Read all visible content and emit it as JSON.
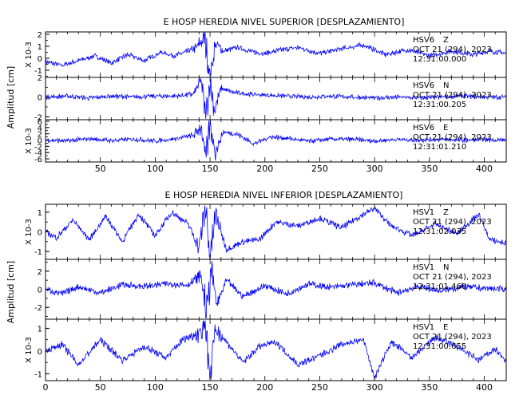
{
  "colors": {
    "trace": "#0000ff",
    "axis": "#000000",
    "background": "#ffffff"
  },
  "chart_data": [
    {
      "type": "line",
      "title": "E HOSP HEREDIA NIVEL SUPERIOR [DESPLAZAMIENTO]",
      "ylabel": "Amplitud [cm]",
      "xlim": [
        0,
        420
      ],
      "xticks": [
        50,
        100,
        150,
        200,
        250,
        300,
        350,
        400
      ],
      "grid": false,
      "panels": [
        {
          "scale_label": "X 10-3",
          "ylim": [
            -1.6,
            2.2
          ],
          "yticks": [
            -1,
            0,
            1,
            2
          ],
          "station": "HSV6",
          "component": "Z",
          "date": "OCT 21 (294), 2023",
          "time": "12:31:00.000",
          "series": [
            {
              "x": [
                0,
                15,
                30,
                45,
                60,
                75,
                90,
                105,
                118,
                130,
                138,
                145,
                150,
                155,
                162,
                175,
                190,
                200,
                215,
                230,
                250,
                270,
                290,
                310,
                330,
                350,
                370,
                390,
                405,
                420
              ],
              "y": [
                -0.3,
                -0.6,
                -0.2,
                0.2,
                -0.4,
                0.3,
                -0.2,
                0.5,
                0.2,
                0.6,
                0.9,
                1.8,
                -1.5,
                1.2,
                0.6,
                0.9,
                0.5,
                0.4,
                0.7,
                0.9,
                0.4,
                0.8,
                1.1,
                0.3,
                0.7,
                0.2,
                0.6,
                0.3,
                0.6,
                0.4
              ]
            }
          ]
        },
        {
          "scale_label": "",
          "ylim": [
            -2.3,
            2.0
          ],
          "yticks": [
            -2,
            0,
            2
          ],
          "station": "HSV6",
          "component": "N",
          "date": "OCT 21 (294), 2023",
          "time": "12:31:00.205",
          "series": [
            {
              "x": [
                0,
                20,
                40,
                60,
                80,
                100,
                120,
                135,
                142,
                146,
                150,
                154,
                160,
                170,
                185,
                200,
                220,
                240,
                260,
                280,
                300,
                320,
                340,
                360,
                380,
                400,
                420
              ],
              "y": [
                0,
                0.1,
                -0.1,
                0.1,
                0,
                0.1,
                0.1,
                0.3,
                1.8,
                -2.2,
                1.7,
                -1.4,
                0.9,
                0.5,
                0.3,
                0.2,
                0.1,
                0,
                0.1,
                0,
                -0.1,
                0,
                -0.1,
                0,
                0.1,
                0,
                0
              ]
            }
          ]
        },
        {
          "scale_label": "X 10-3",
          "ylim": [
            -7,
            6.5
          ],
          "yticks": [
            -6,
            -4,
            -2,
            0,
            2,
            4,
            6
          ],
          "station": "HSV6",
          "component": "E",
          "date": "OCT 21 (294), 2023",
          "time": "12:31:01.210",
          "series": [
            {
              "x": [
                0,
                20,
                40,
                60,
                80,
                100,
                120,
                135,
                142,
                146,
                150,
                155,
                162,
                175,
                190,
                205,
                220,
                240,
                260,
                280,
                300,
                320,
                340,
                360,
                380,
                400,
                420
              ],
              "y": [
                0,
                -0.3,
                0.4,
                -0.2,
                0.3,
                -0.3,
                0.5,
                1.5,
                4.5,
                -6.5,
                5.2,
                -3.8,
                2.6,
                1.8,
                -1.2,
                1.0,
                0.6,
                -0.4,
                0.3,
                0.2,
                -0.3,
                0.2,
                0,
                0.2,
                -0.1,
                0.1,
                0
              ]
            }
          ]
        }
      ]
    },
    {
      "type": "line",
      "title": "E HOSP HEREDIA NIVEL INFERIOR [DESPLAZAMIENTO]",
      "ylabel": "Amplitud [cm]",
      "xlim": [
        0,
        420
      ],
      "xticks": [
        0,
        50,
        100,
        150,
        200,
        250,
        300,
        350,
        400
      ],
      "grid": false,
      "panels": [
        {
          "scale_label": "X 10-3",
          "ylim": [
            -1.4,
            1.4
          ],
          "yticks": [
            -1,
            0,
            1
          ],
          "station": "HSV1",
          "component": "Z",
          "date": "OCT 21 (294), 2023",
          "time": "12:31:02.035",
          "series": [
            {
              "x": [
                0,
                10,
                25,
                40,
                55,
                70,
                85,
                100,
                115,
                130,
                140,
                146,
                150,
                155,
                165,
                180,
                195,
                210,
                230,
                250,
                270,
                290,
                300,
                315,
                335,
                355,
                375,
                395,
                405,
                420
              ],
              "y": [
                0,
                -0.3,
                0.6,
                -0.4,
                0.8,
                -0.5,
                0.9,
                -0.2,
                1.0,
                0.4,
                -0.8,
                1.3,
                -1.3,
                0.9,
                -0.9,
                -0.5,
                -0.4,
                0.5,
                0.3,
                0.7,
                0.2,
                0.9,
                1.2,
                0.3,
                -0.2,
                0.4,
                -0.1,
                0.9,
                -0.4,
                -0.6
              ]
            }
          ]
        },
        {
          "scale_label": "",
          "ylim": [
            -3.3,
            3.3
          ],
          "yticks": [
            -2,
            0,
            2
          ],
          "station": "HSV1",
          "component": "N",
          "date": "OCT 21 (294), 2023",
          "time": "12:31:01.460",
          "series": [
            {
              "x": [
                0,
                15,
                30,
                50,
                70,
                90,
                110,
                130,
                142,
                147,
                151,
                156,
                165,
                180,
                200,
                220,
                240,
                260,
                280,
                300,
                320,
                340,
                360,
                380,
                400,
                420
              ],
              "y": [
                0,
                -0.5,
                0.3,
                -0.4,
                0.5,
                0.3,
                0.6,
                0.5,
                1.5,
                -3.0,
                2.5,
                -1.8,
                1.0,
                -0.8,
                0.4,
                -0.5,
                0.6,
                0.2,
                0.5,
                0.7,
                -0.4,
                0.3,
                -0.2,
                0.3,
                0.1,
                0
              ]
            }
          ]
        },
        {
          "scale_label": "X 10-3",
          "ylim": [
            -1.3,
            1.4
          ],
          "yticks": [
            -1,
            0,
            1
          ],
          "station": "HSV1",
          "component": "E",
          "date": "OCT 21 (294), 2023",
          "time": "12:31:00.655",
          "series": [
            {
              "x": [
                0,
                15,
                30,
                50,
                70,
                90,
                110,
                125,
                140,
                146,
                150,
                155,
                165,
                180,
                195,
                210,
                230,
                250,
                270,
                290,
                300,
                315,
                335,
                355,
                375,
                395,
                410,
                420
              ],
              "y": [
                0,
                0.3,
                -0.6,
                0.5,
                -0.4,
                0.2,
                -0.3,
                0.5,
                0.8,
                1.3,
                -1.2,
                1.0,
                0.4,
                -0.5,
                0.2,
                0.4,
                -0.6,
                -0.2,
                0.3,
                0.5,
                -1.2,
                0.4,
                -0.3,
                0.6,
                0.2,
                -0.4,
                0.1,
                -0.5
              ]
            }
          ]
        }
      ]
    }
  ]
}
